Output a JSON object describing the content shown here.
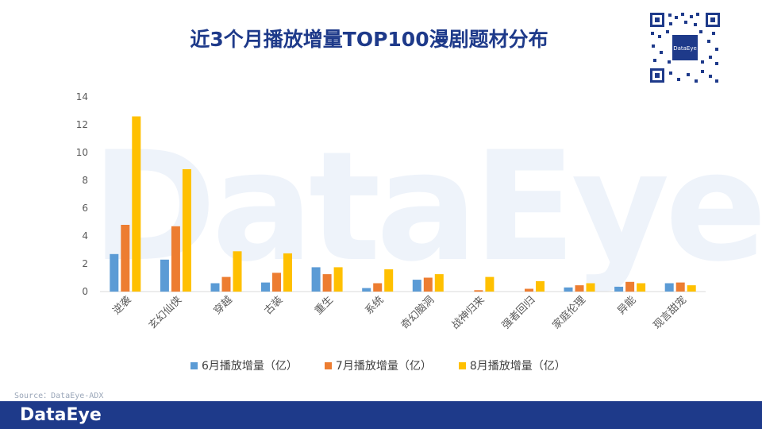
{
  "title": "近3个月播放增量TOP100漫剧题材分布",
  "watermark": "DataEye",
  "qr_logo_text": "DataEye",
  "source": "Source：DataEye-ADX",
  "footer_logo": "DataEye",
  "colors": {
    "series_june": "#5b9bd5",
    "series_july": "#ed7d31",
    "series_aug": "#ffc000",
    "footer": "#1e3a8a",
    "title": "#1e3a8a"
  },
  "chart_data": {
    "type": "bar",
    "categories": [
      "逆袭",
      "玄幻仙侠",
      "穿越",
      "古装",
      "重生",
      "系统",
      "奇幻脑洞",
      "战神归来",
      "强者回归",
      "家庭伦理",
      "异能",
      "现言甜宠"
    ],
    "series": [
      {
        "name": "6月播放增量（亿）",
        "values": [
          2.7,
          2.3,
          0.6,
          0.65,
          1.75,
          0.25,
          0.85,
          0.0,
          0.0,
          0.3,
          0.35,
          0.6
        ]
      },
      {
        "name": "7月播放增量（亿）",
        "values": [
          4.8,
          4.7,
          1.05,
          1.35,
          1.25,
          0.6,
          1.0,
          0.1,
          0.2,
          0.45,
          0.7,
          0.65
        ]
      },
      {
        "name": "8月播放增量（亿）",
        "values": [
          12.6,
          8.8,
          2.9,
          2.75,
          1.75,
          1.6,
          1.25,
          1.05,
          0.75,
          0.6,
          0.6,
          0.45
        ]
      }
    ],
    "ylim": [
      0,
      14
    ],
    "yticks": [
      0,
      2,
      4,
      6,
      8,
      10,
      12,
      14
    ],
    "grid": false,
    "legend_position": "bottom"
  }
}
